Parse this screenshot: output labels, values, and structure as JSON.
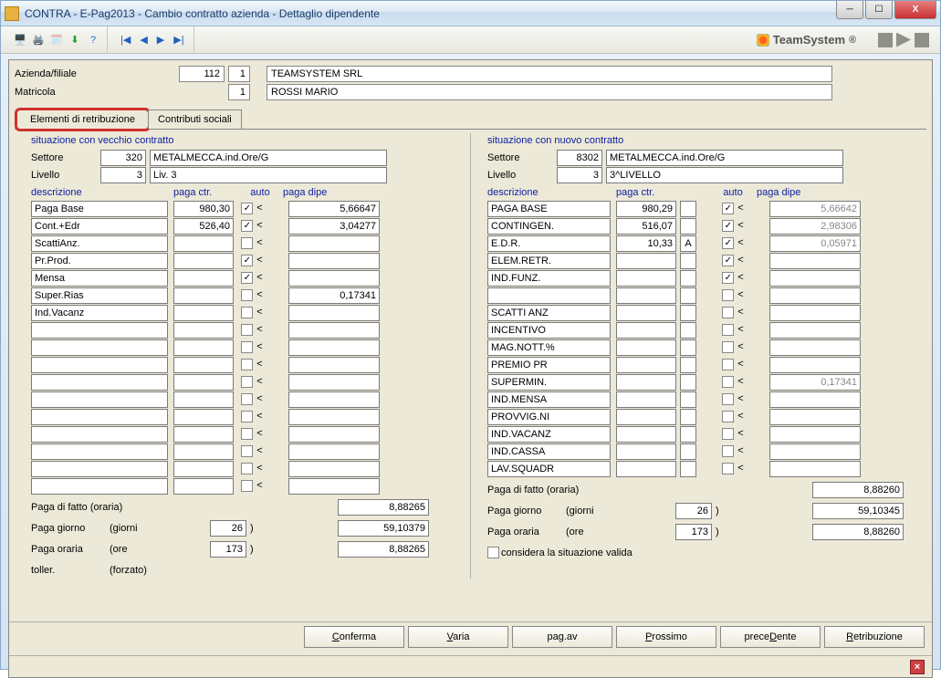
{
  "window": {
    "title": "CONTRA  -  E-Pag2013  -  Cambio contratto azienda - Dettaglio dipendente",
    "brand": "TeamSystem"
  },
  "header": {
    "azienda_label": "Azienda/filiale",
    "azienda_code": "112",
    "azienda_sub": "1",
    "azienda_name": "TEAMSYSTEM SRL",
    "matricola_label": "Matricola",
    "matricola_code": "1",
    "matricola_name": "ROSSI MARIO"
  },
  "tabs": {
    "t1": "Elementi di retribuzione",
    "t2": "Contributi sociali"
  },
  "cols": {
    "old_title": "situazione con vecchio contratto",
    "new_title": "situazione con nuovo contratto",
    "settore_label": "Settore",
    "livello_label": "Livello",
    "hdr_desc": "descrizione",
    "hdr_paga_ctr": "paga ctr.",
    "hdr_auto": "auto",
    "hdr_paga_dipe": "paga dipe",
    "paga_fatto": "Paga di fatto (oraria)",
    "paga_giorno": "Paga giorno",
    "giorni": "(giorni",
    "paga_oraria": "Paga oraria",
    "ore": "(ore",
    "toller": "toller.",
    "forzato": "(forzato)",
    "considera": "considera la situazione valida",
    "close_paren": ")"
  },
  "old": {
    "settore_code": "320",
    "settore_desc": "METALMECCA.ind.Ore/G",
    "livello_code": "3",
    "livello_desc": "Liv. 3",
    "rows": [
      {
        "desc": "Paga Base",
        "ctr": "980,30",
        "auto": true,
        "dipe": "5,66647"
      },
      {
        "desc": "Cont.+Edr",
        "ctr": "526,40",
        "auto": true,
        "dipe": "3,04277"
      },
      {
        "desc": "ScattiAnz.",
        "ctr": "",
        "auto": false,
        "dipe": ""
      },
      {
        "desc": "Pr.Prod.",
        "ctr": "",
        "auto": true,
        "dipe": ""
      },
      {
        "desc": "Mensa",
        "ctr": "",
        "auto": true,
        "dipe": ""
      },
      {
        "desc": "Super.Rias",
        "ctr": "",
        "auto": false,
        "dipe": "0,17341"
      },
      {
        "desc": "Ind.Vacanz",
        "ctr": "",
        "auto": false,
        "dipe": ""
      },
      {
        "desc": "",
        "ctr": "",
        "auto": false,
        "dipe": ""
      },
      {
        "desc": "",
        "ctr": "",
        "auto": false,
        "dipe": ""
      },
      {
        "desc": "",
        "ctr": "",
        "auto": false,
        "dipe": ""
      },
      {
        "desc": "",
        "ctr": "",
        "auto": false,
        "dipe": ""
      },
      {
        "desc": "",
        "ctr": "",
        "auto": false,
        "dipe": ""
      },
      {
        "desc": "",
        "ctr": "",
        "auto": false,
        "dipe": ""
      },
      {
        "desc": "",
        "ctr": "",
        "auto": false,
        "dipe": ""
      },
      {
        "desc": "",
        "ctr": "",
        "auto": false,
        "dipe": ""
      },
      {
        "desc": "",
        "ctr": "",
        "auto": false,
        "dipe": ""
      },
      {
        "desc": "",
        "ctr": "",
        "auto": false,
        "dipe": ""
      }
    ],
    "paga_fatto_val": "8,88265",
    "giorni_val": "26",
    "paga_giorno_val": "59,10379",
    "ore_val": "173",
    "paga_oraria_val": "8,88265"
  },
  "new": {
    "settore_code": "8302",
    "settore_desc": "METALMECCA.ind.Ore/G",
    "livello_code": "3",
    "livello_desc": "3^LIVELLO",
    "rows": [
      {
        "desc": "PAGA BASE",
        "ctr": "980,29",
        "extra": "",
        "auto": true,
        "dipe": "5,66642",
        "dim": true
      },
      {
        "desc": "CONTINGEN.",
        "ctr": "516,07",
        "extra": "",
        "auto": true,
        "dipe": "2,98306",
        "dim": true
      },
      {
        "desc": "E.D.R.",
        "ctr": "10,33",
        "extra": "A",
        "auto": true,
        "dipe": "0,05971",
        "dim": true
      },
      {
        "desc": "ELEM.RETR.",
        "ctr": "",
        "extra": "",
        "auto": true,
        "dipe": "",
        "dim": false
      },
      {
        "desc": "IND.FUNZ.",
        "ctr": "",
        "extra": "",
        "auto": true,
        "dipe": "",
        "dim": false
      },
      {
        "desc": "",
        "ctr": "",
        "extra": "",
        "auto": false,
        "dipe": "",
        "dim": false
      },
      {
        "desc": "SCATTI ANZ",
        "ctr": "",
        "extra": "",
        "auto": false,
        "dipe": "",
        "dim": false
      },
      {
        "desc": "INCENTIVO",
        "ctr": "",
        "extra": "",
        "auto": false,
        "dipe": "",
        "dim": false
      },
      {
        "desc": "MAG.NOTT.%",
        "ctr": "",
        "extra": "",
        "auto": false,
        "dipe": "",
        "dim": false
      },
      {
        "desc": "PREMIO PR",
        "ctr": "",
        "extra": "",
        "auto": false,
        "dipe": "",
        "dim": false
      },
      {
        "desc": "SUPERMIN.",
        "ctr": "",
        "extra": "",
        "auto": false,
        "dipe": "0,17341",
        "dim": true
      },
      {
        "desc": "IND.MENSA",
        "ctr": "",
        "extra": "",
        "auto": false,
        "dipe": "",
        "dim": false
      },
      {
        "desc": "PROVVIG.NI",
        "ctr": "",
        "extra": "",
        "auto": false,
        "dipe": "",
        "dim": false
      },
      {
        "desc": "IND.VACANZ",
        "ctr": "",
        "extra": "",
        "auto": false,
        "dipe": "",
        "dim": false
      },
      {
        "desc": "IND.CASSA",
        "ctr": "",
        "extra": "",
        "auto": false,
        "dipe": "",
        "dim": false
      },
      {
        "desc": "LAV.SQUADR",
        "ctr": "",
        "extra": "",
        "auto": false,
        "dipe": "",
        "dim": false
      }
    ],
    "paga_fatto_val": "8,88260",
    "giorni_val": "26",
    "paga_giorno_val": "59,10345",
    "ore_val": "173",
    "paga_oraria_val": "8,88260"
  },
  "buttons": {
    "conferma": "Conferma",
    "varia": "Varia",
    "pagav": "pag.av",
    "prossimo": "Prossimo",
    "precedente": "preceDente",
    "retribuzione": "Retribuzione"
  },
  "colors": {
    "section_title": "#1020a0",
    "highlight_border": "#d03030"
  }
}
